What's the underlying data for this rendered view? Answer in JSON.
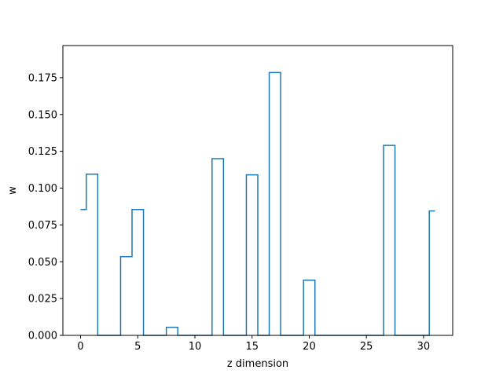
{
  "chart_data": {
    "type": "line",
    "drawstyle": "steps-mid",
    "title": "",
    "xlabel": "z dimension",
    "ylabel": "w",
    "xlim": [
      -1.55,
      32.55
    ],
    "ylim": [
      0,
      0.1968
    ],
    "xticks": [
      0,
      5,
      10,
      15,
      20,
      25,
      30
    ],
    "xtick_labels": [
      "0",
      "5",
      "10",
      "15",
      "20",
      "25",
      "30"
    ],
    "yticks": [
      0,
      0.025,
      0.05,
      0.075,
      0.1,
      0.125,
      0.15,
      0.175
    ],
    "ytick_labels": [
      "0.000",
      "0.025",
      "0.050",
      "0.075",
      "0.100",
      "0.125",
      "0.150",
      "0.175"
    ],
    "grid": false,
    "series": [
      {
        "color": "#1f77b4",
        "x": [
          0,
          1,
          2,
          3,
          4,
          5,
          6,
          7,
          8,
          9,
          10,
          11,
          12,
          13,
          14,
          15,
          16,
          17,
          18,
          19,
          20,
          21,
          22,
          23,
          24,
          25,
          26,
          27,
          28,
          29,
          30,
          31
        ],
        "y": [
          0.0855,
          0.1095,
          0,
          0,
          0.0535,
          0.0855,
          0,
          0,
          0.0055,
          0,
          0,
          0,
          0.12,
          0,
          0,
          0.109,
          0,
          0.1785,
          0,
          0,
          0.0375,
          0,
          0,
          0,
          0,
          0,
          0,
          0.129,
          0,
          0,
          0,
          0.0845
        ]
      }
    ]
  }
}
